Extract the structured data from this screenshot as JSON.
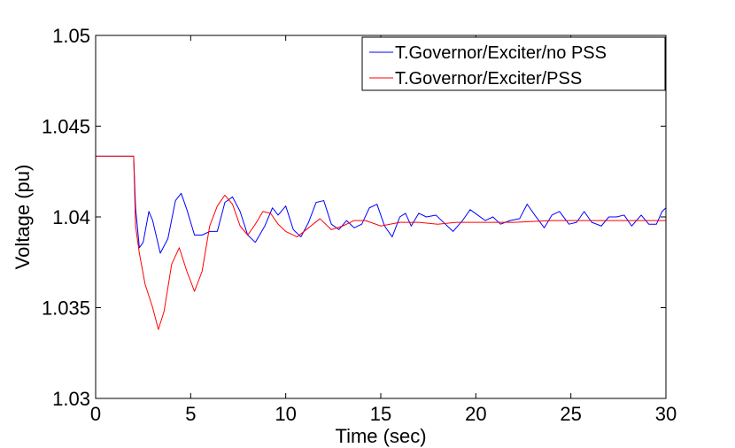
{
  "chart_data": {
    "type": "line",
    "title": "",
    "xlabel": "Time (sec)",
    "ylabel": "Voltage (pu)",
    "xlim": [
      0,
      30
    ],
    "ylim": [
      1.03,
      1.05
    ],
    "grid": false,
    "legend_position": "top-right",
    "x_ticks": [
      {
        "value": 0,
        "label": "0"
      },
      {
        "value": 5,
        "label": "5"
      },
      {
        "value": 10,
        "label": "10"
      },
      {
        "value": 15,
        "label": "15"
      },
      {
        "value": 20,
        "label": "20"
      },
      {
        "value": 25,
        "label": "25"
      },
      {
        "value": 30,
        "label": "30"
      }
    ],
    "y_ticks": [
      {
        "value": 1.03,
        "label": "1.03"
      },
      {
        "value": 1.035,
        "label": "1.035"
      },
      {
        "value": 1.04,
        "label": "1.04"
      },
      {
        "value": 1.045,
        "label": "1.045"
      },
      {
        "value": 1.05,
        "label": "1.05"
      }
    ],
    "series": [
      {
        "name": "T.Governor/Exciter/no PSS",
        "color": "#0000ff",
        "x": [
          0,
          2.0,
          2.1,
          2.3,
          2.5,
          2.8,
          3.0,
          3.4,
          3.8,
          4.2,
          4.5,
          4.8,
          5.2,
          5.6,
          6.0,
          6.4,
          6.8,
          7.2,
          7.6,
          8.0,
          8.4,
          8.9,
          9.3,
          9.6,
          10.0,
          10.4,
          10.8,
          11.2,
          11.6,
          12.0,
          12.4,
          12.8,
          13.2,
          13.6,
          14.0,
          14.4,
          14.8,
          15.2,
          15.6,
          16.0,
          16.3,
          16.6,
          17.0,
          17.4,
          17.9,
          18.4,
          18.8,
          19.3,
          19.7,
          20.1,
          20.5,
          20.9,
          21.3,
          21.8,
          22.3,
          22.7,
          23.1,
          23.6,
          24.0,
          24.4,
          24.9,
          25.3,
          25.7,
          26.1,
          26.6,
          27.0,
          27.4,
          27.8,
          28.2,
          28.7,
          29.1,
          29.5,
          29.8,
          30.0
        ],
        "y": [
          1.04335,
          1.04335,
          1.0405,
          1.0383,
          1.0386,
          1.0403,
          1.0398,
          1.038,
          1.0388,
          1.0409,
          1.0413,
          1.0404,
          1.039,
          1.039,
          1.0392,
          1.0392,
          1.0408,
          1.0411,
          1.0403,
          1.039,
          1.0386,
          1.0395,
          1.0405,
          1.0401,
          1.0406,
          1.0393,
          1.0389,
          1.0397,
          1.0408,
          1.0409,
          1.0396,
          1.0393,
          1.0398,
          1.0394,
          1.0396,
          1.0405,
          1.0407,
          1.0395,
          1.0389,
          1.04,
          1.0402,
          1.0395,
          1.0402,
          1.04,
          1.0401,
          1.0396,
          1.0392,
          1.0398,
          1.0404,
          1.0401,
          1.0398,
          1.04,
          1.0396,
          1.0398,
          1.0399,
          1.0407,
          1.0401,
          1.0394,
          1.0401,
          1.0403,
          1.0396,
          1.0397,
          1.0403,
          1.0397,
          1.0395,
          1.04,
          1.04,
          1.0401,
          1.0395,
          1.0401,
          1.0396,
          1.0396,
          1.0403,
          1.0405
        ]
      },
      {
        "name": "T.Governor/Exciter/PSS",
        "color": "#ff0000",
        "x": [
          0,
          2.0,
          2.1,
          2.3,
          2.6,
          3.0,
          3.3,
          3.6,
          4.0,
          4.4,
          4.8,
          5.2,
          5.6,
          6.0,
          6.4,
          6.8,
          7.2,
          7.6,
          8.0,
          8.4,
          8.8,
          9.2,
          9.6,
          10.0,
          10.6,
          11.2,
          11.8,
          12.4,
          13.0,
          13.6,
          14.2,
          15.0,
          16.0,
          17.0,
          18.0,
          19.0,
          20.0,
          22.0,
          24.0,
          26.0,
          28.0,
          30.0
        ],
        "y": [
          1.04335,
          1.04335,
          1.0395,
          1.038,
          1.0363,
          1.035,
          1.0338,
          1.0348,
          1.0374,
          1.0383,
          1.037,
          1.0359,
          1.037,
          1.0395,
          1.0406,
          1.0412,
          1.0407,
          1.0395,
          1.039,
          1.0396,
          1.0403,
          1.0402,
          1.0396,
          1.0392,
          1.0389,
          1.0394,
          1.0399,
          1.0393,
          1.0395,
          1.0398,
          1.0398,
          1.0395,
          1.0397,
          1.0397,
          1.0396,
          1.0397,
          1.0397,
          1.0397,
          1.0398,
          1.0398,
          1.0398,
          1.0398
        ]
      }
    ]
  }
}
